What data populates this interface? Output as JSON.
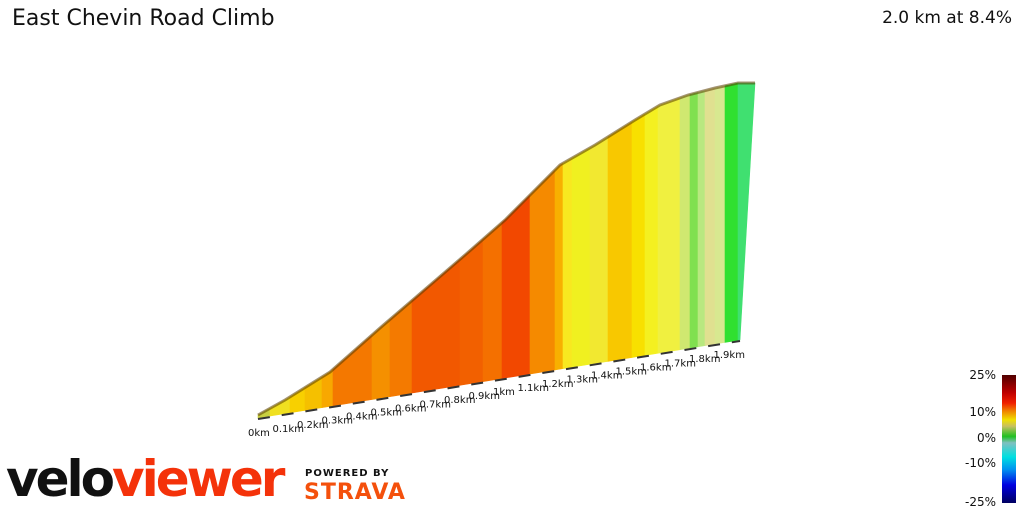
{
  "header": {
    "title": "East Chevin Road Climb",
    "summary": "2.0 km at 8.4%"
  },
  "chart_data": {
    "type": "area",
    "title": "East Chevin Road Climb",
    "subtitle": "2.0 km at 8.4%",
    "x_tick_labels": [
      "0km",
      "0.1km",
      "0.2km",
      "0.3km",
      "0.4km",
      "0.5km",
      "0.6km",
      "0.7km",
      "0.8km",
      "0.9km",
      "1km",
      "1.1km",
      "1.2km",
      "1.3km",
      "1.4km",
      "1.5km",
      "1.6km",
      "1.7km",
      "1.8km",
      "1.9km"
    ],
    "segment_colors": [
      "#c8d040",
      "#f0e020",
      "#f8d000",
      "#f5c000",
      "#f8a800",
      "#f47800",
      "#f59000",
      "#f47a00",
      "#f25800",
      "#f26000",
      "#f47000",
      "#f24800",
      "#f58a00",
      "#f8b000",
      "#f8e820",
      "#f0f020",
      "#f2e830",
      "#f8c800",
      "#f8e000",
      "#f4f020",
      "#f0f040",
      "#d0e870",
      "#80e050",
      "#b8e880",
      "#e0e090",
      "#d8e890",
      "#30e030",
      "#40e070"
    ],
    "color_scale": {
      "labels": [
        "25%",
        "10%",
        "0%",
        "-10%",
        "-25%"
      ],
      "range": [
        -25,
        25
      ]
    }
  },
  "branding": {
    "logo_part1": "velo",
    "logo_part2": "viewer",
    "powered_by": "POWERED BY",
    "strava": "STRAVA"
  }
}
